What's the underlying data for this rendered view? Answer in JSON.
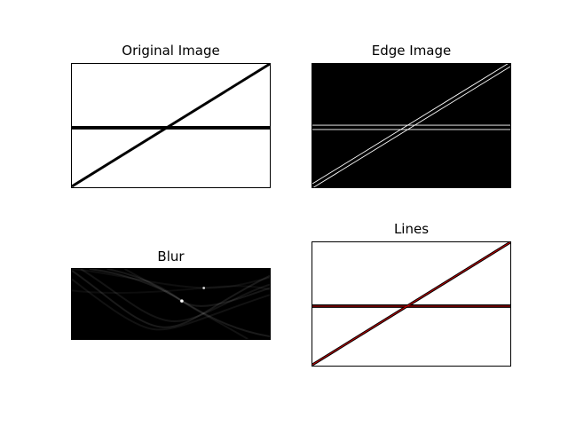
{
  "figure": {
    "panels": [
      {
        "id": "original",
        "title": "Original Image"
      },
      {
        "id": "edge",
        "title": "Edge Image"
      },
      {
        "id": "blur",
        "title": "Blur"
      },
      {
        "id": "lines",
        "title": "Lines"
      }
    ]
  }
}
